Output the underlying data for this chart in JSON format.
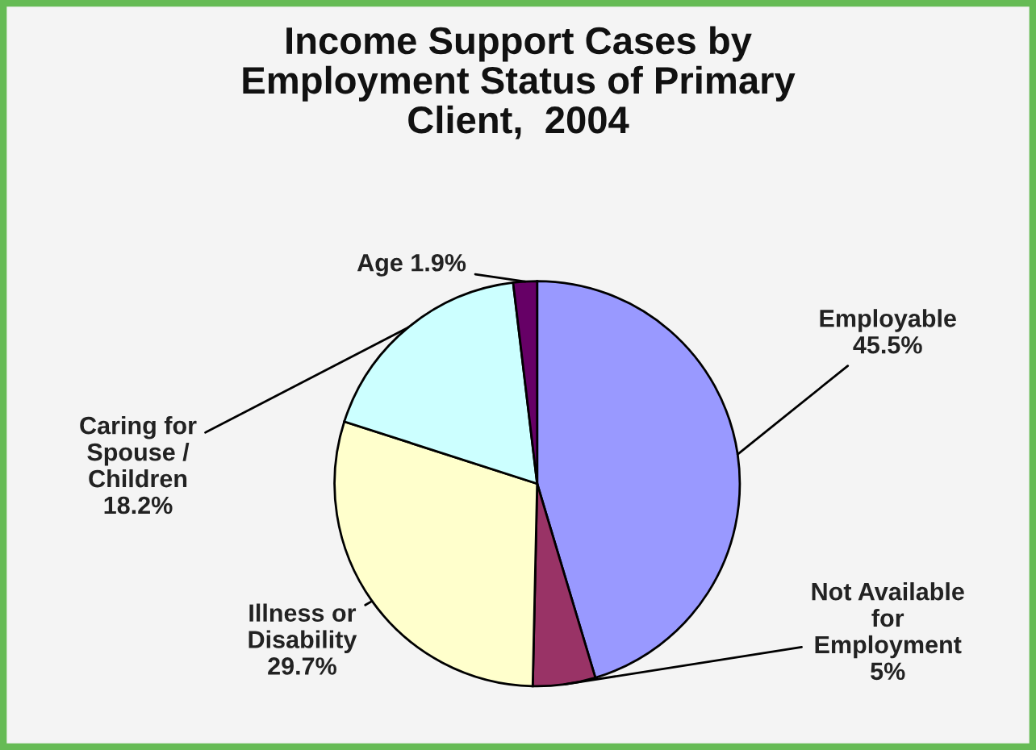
{
  "chart_data": {
    "type": "pie",
    "title": "Income Support Cases by\nEmployment Status of Primary\nClient,  2004",
    "categories": [
      "Employable",
      "Not Available\nfor\nEmployment",
      "Illness or\nDisability",
      "Caring for\nSpouse /\nChildren",
      "Age"
    ],
    "values": [
      45.5,
      5,
      29.7,
      18.2,
      1.9
    ],
    "value_labels": [
      "45.5%",
      "5%",
      "29.7%",
      "18.2%",
      "1.9%"
    ],
    "colors": [
      "#9999ff",
      "#993366",
      "#ffffcc",
      "#ccffff",
      "#660066"
    ]
  }
}
